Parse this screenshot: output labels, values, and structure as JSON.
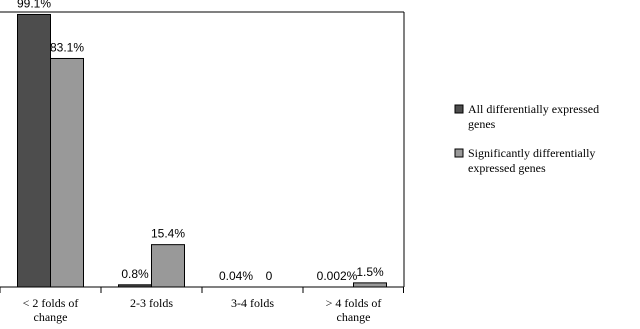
{
  "chart_data": {
    "type": "bar",
    "categories": [
      [
        "< 2 folds of",
        "change"
      ],
      [
        "2-3 folds"
      ],
      [
        "3-4 folds"
      ],
      [
        "> 4 folds of",
        "change"
      ]
    ],
    "series": [
      {
        "name": [
          "All differentially expressed",
          "genes"
        ],
        "values": [
          99.1,
          0.8,
          0.04,
          0.002
        ],
        "labels": [
          "99.1%",
          "0.8%",
          "0.04%",
          "0.002%"
        ],
        "color": "#4d4d4d"
      },
      {
        "name": [
          "Significantly differentially",
          "expressed genes"
        ],
        "values": [
          83.1,
          15.4,
          0,
          1.5
        ],
        "labels": [
          "83.1%",
          "15.4%",
          "0",
          "1.5%"
        ],
        "color": "#999999"
      }
    ],
    "ylim": [
      0,
      100
    ],
    "grid": false,
    "legend_position": "right"
  }
}
